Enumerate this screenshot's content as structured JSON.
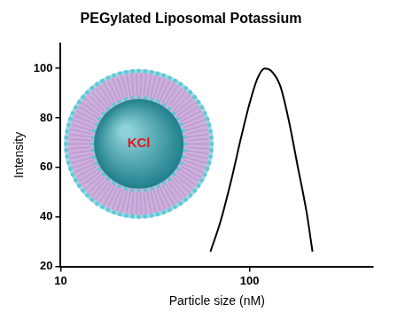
{
  "chart_data": {
    "type": "line",
    "title": "PEGylated Liposomal Potassium",
    "x_label": "Particle size (nM)",
    "y_label": "Intensity",
    "x": [
      62,
      70,
      80,
      90,
      100,
      110,
      120,
      130,
      145,
      160,
      180,
      200,
      215
    ],
    "values": [
      26,
      38,
      55,
      72,
      86,
      96,
      100,
      99,
      93,
      80,
      60,
      42,
      26
    ],
    "color": "#000000",
    "xlim": [
      10,
      450
    ],
    "xticks": [
      10,
      100
    ],
    "log": "x",
    "ylim": [
      20,
      110
    ],
    "yticks": [
      20,
      40,
      60,
      80,
      100
    ],
    "grid": false,
    "annotations": [
      {
        "text": "KCl"
      }
    ]
  }
}
